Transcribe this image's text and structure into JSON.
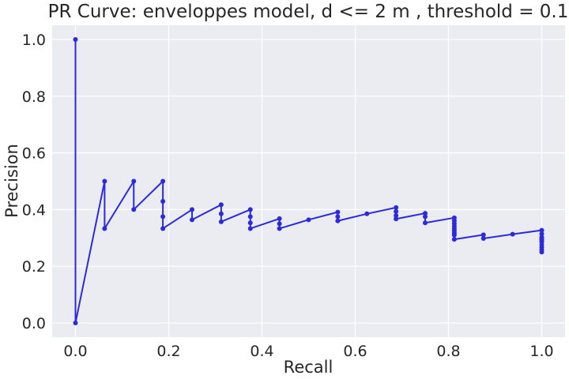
{
  "chart_data": {
    "type": "line",
    "title": "PR Curve: enveloppes model, d <= 2 m , threshold = 0.1",
    "xlabel": "Recall",
    "ylabel": "Precision",
    "xlim": [
      -0.05,
      1.05
    ],
    "ylim": [
      -0.05,
      1.05
    ],
    "xticks": [
      0.0,
      0.2,
      0.4,
      0.6,
      0.8,
      1.0
    ],
    "xtick_labels": [
      "0.0",
      "0.2",
      "0.4",
      "0.6",
      "0.8",
      "1.0"
    ],
    "yticks": [
      0.0,
      0.2,
      0.4,
      0.6,
      0.8,
      1.0
    ],
    "ytick_labels": [
      "0.0",
      "0.2",
      "0.4",
      "0.6",
      "0.8",
      "1.0"
    ],
    "grid": true,
    "line_color": "#2b2bd9",
    "background_color": "#ebebf2",
    "grid_color": "#ffffff",
    "series": [
      {
        "x": [
          0,
          0,
          0.0625,
          0.0625,
          0.125,
          0.125,
          0.1875,
          0.1875,
          0.1875,
          0.1875,
          0.25,
          0.25,
          0.3125,
          0.3125,
          0.3125,
          0.375,
          0.375,
          0.375,
          0.375,
          0.4375,
          0.4375,
          0.4375,
          0.5,
          0.5625,
          0.5625,
          0.5625,
          0.625,
          0.6875,
          0.6875,
          0.6875,
          0.6875,
          0.75,
          0.75,
          0.75,
          0.8125,
          0.8125,
          0.8125,
          0.8125,
          0.8125,
          0.8125,
          0.8125,
          0.8125,
          0.8125,
          0.875,
          0.875,
          0.9375,
          1.0,
          1.0,
          1.0,
          1.0,
          1.0,
          1.0,
          1.0,
          1.0,
          1.0,
          1.0
        ],
        "y": [
          1.0,
          0.0,
          0.5,
          0.333,
          0.5,
          0.4,
          0.5,
          0.429,
          0.375,
          0.333,
          0.4,
          0.364,
          0.417,
          0.385,
          0.357,
          0.4,
          0.375,
          0.353,
          0.333,
          0.368,
          0.35,
          0.333,
          0.364,
          0.391,
          0.375,
          0.36,
          0.385,
          0.407,
          0.393,
          0.379,
          0.367,
          0.387,
          0.375,
          0.353,
          0.371,
          0.361,
          0.351,
          0.342,
          0.333,
          0.325,
          0.317,
          0.31,
          0.295,
          0.311,
          0.298,
          0.313,
          0.327,
          0.314,
          0.302,
          0.296,
          0.291,
          0.286,
          0.276,
          0.267,
          0.258,
          0.25
        ]
      }
    ]
  }
}
